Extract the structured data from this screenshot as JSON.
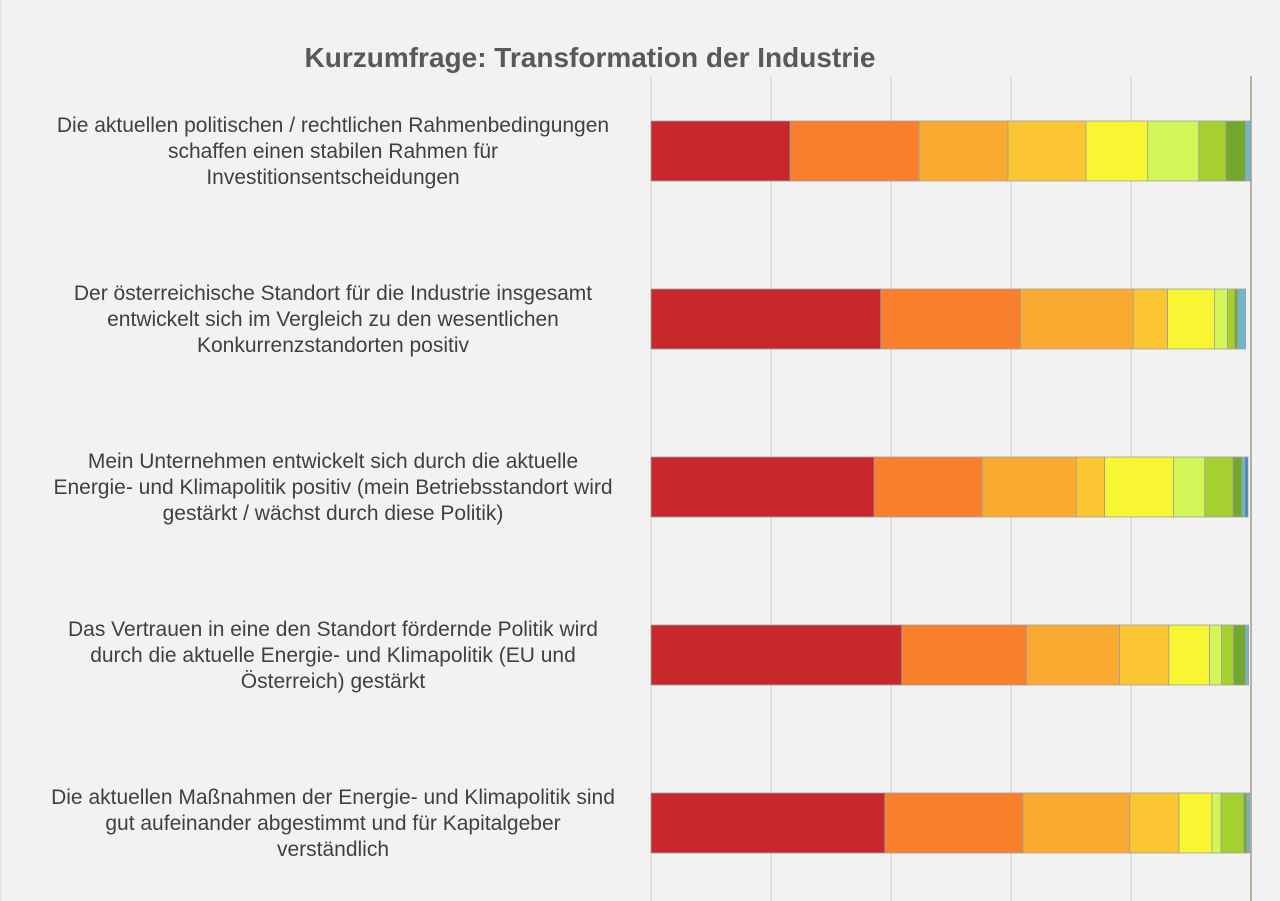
{
  "chart_data": {
    "type": "bar",
    "orientation": "horizontal",
    "stacked": true,
    "normalized": true,
    "title": "Kurzumfrage: Transformation der Industrie",
    "xlim": [
      0,
      100
    ],
    "xticks": [
      0,
      20,
      40,
      60,
      80,
      100
    ],
    "grid": true,
    "legend": "none",
    "categories": [
      [
        "Die aktuellen politischen / rechtlichen Rahmenbedingungen",
        "schaffen einen stabilen Rahmen für",
        "Investitionsentscheidungen"
      ],
      [
        "Der österreichische Standort für die Industrie insgesamt",
        "entwickelt sich im Vergleich zu den wesentlichen",
        "Konkurrenzstandorten positiv"
      ],
      [
        "Mein Unternehmen entwickelt sich durch die aktuelle",
        "Energie- und Klimapolitik positiv (mein Betriebsstandort wird",
        "gestärkt / wächst durch diese Politik)"
      ],
      [
        "Das Vertrauen in eine den Standort fördernde Politik wird",
        "durch die aktuelle Energie- und Klimapolitik (EU und",
        "Österreich) gestärkt"
      ],
      [
        "Die aktuellen Maßnahmen der Energie- und Klimapolitik sind",
        "gut aufeinander abgestimmt und für Kapitalgeber",
        "verständlich"
      ]
    ],
    "segment_colors": [
      "#c8282b",
      "#f97f2c",
      "#fbaa31",
      "#fbc632",
      "#f8f532",
      "#d4f558",
      "#a5d030",
      "#74a72e",
      "#6fb7cc",
      "#3b86c5"
    ],
    "series": [
      {
        "values": [
          23.2,
          38.3,
          37.2,
          41.8,
          39.0
        ]
      },
      {
        "values": [
          21.5,
          23.3,
          18.0,
          20.8,
          23.0
        ]
      },
      {
        "values": [
          14.8,
          18.8,
          15.7,
          15.5,
          17.8
        ]
      },
      {
        "values": [
          13.0,
          5.7,
          4.7,
          8.2,
          8.2
        ]
      },
      {
        "values": [
          10.3,
          7.8,
          11.5,
          6.8,
          5.5
        ]
      },
      {
        "values": [
          8.5,
          2.2,
          5.2,
          2.0,
          1.5
        ]
      },
      {
        "values": [
          4.5,
          1.2,
          4.7,
          2.0,
          3.8
        ]
      },
      {
        "values": [
          3.3,
          0.5,
          1.5,
          2.0,
          0.5
        ]
      },
      {
        "values": [
          0.8,
          1.3,
          0.5,
          0.5,
          0.5
        ]
      },
      {
        "values": [
          0.0,
          0.0,
          0.5,
          0.0,
          0.0
        ]
      }
    ]
  }
}
